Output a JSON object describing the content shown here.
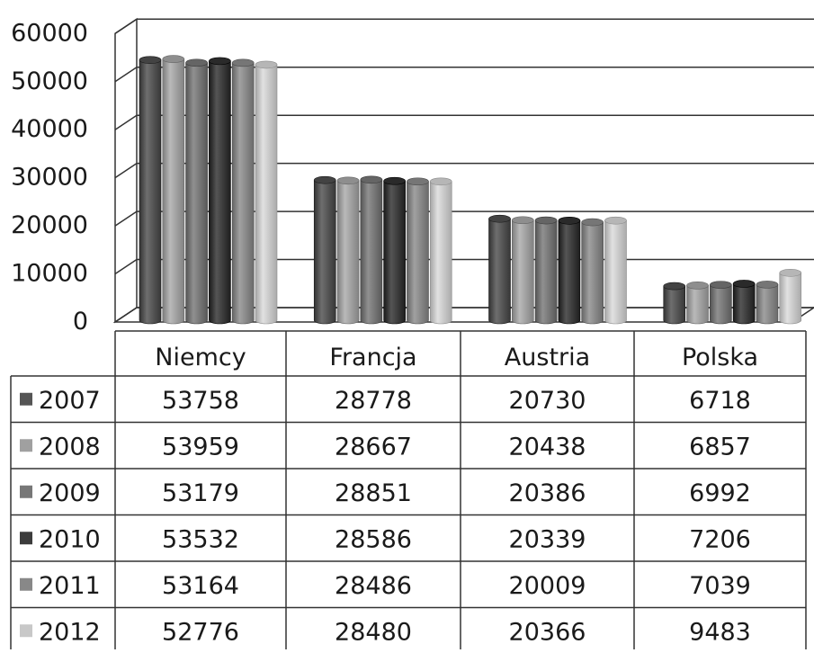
{
  "chart_data": {
    "type": "bar",
    "categories": [
      "Niemcy",
      "Francja",
      "Austria",
      "Polska"
    ],
    "series": [
      {
        "name": "2007",
        "color": "#555555",
        "values": [
          53758,
          28778,
          20730,
          6718
        ]
      },
      {
        "name": "2008",
        "color": "#a0a0a0",
        "values": [
          53959,
          28667,
          20438,
          6857
        ]
      },
      {
        "name": "2009",
        "color": "#777777",
        "values": [
          53179,
          28851,
          20386,
          6992
        ]
      },
      {
        "name": "2010",
        "color": "#3c3c3c",
        "values": [
          53532,
          28586,
          20339,
          7206
        ]
      },
      {
        "name": "2011",
        "color": "#888888",
        "values": [
          53164,
          28486,
          20009,
          7039
        ]
      },
      {
        "name": "2012",
        "color": "#c8c8c8",
        "values": [
          52776,
          28480,
          20366,
          9483
        ]
      }
    ],
    "ylim": [
      0,
      60000
    ],
    "yticks": [
      0,
      10000,
      20000,
      30000,
      40000,
      50000,
      60000
    ],
    "grid": true,
    "legend": "data-table"
  }
}
